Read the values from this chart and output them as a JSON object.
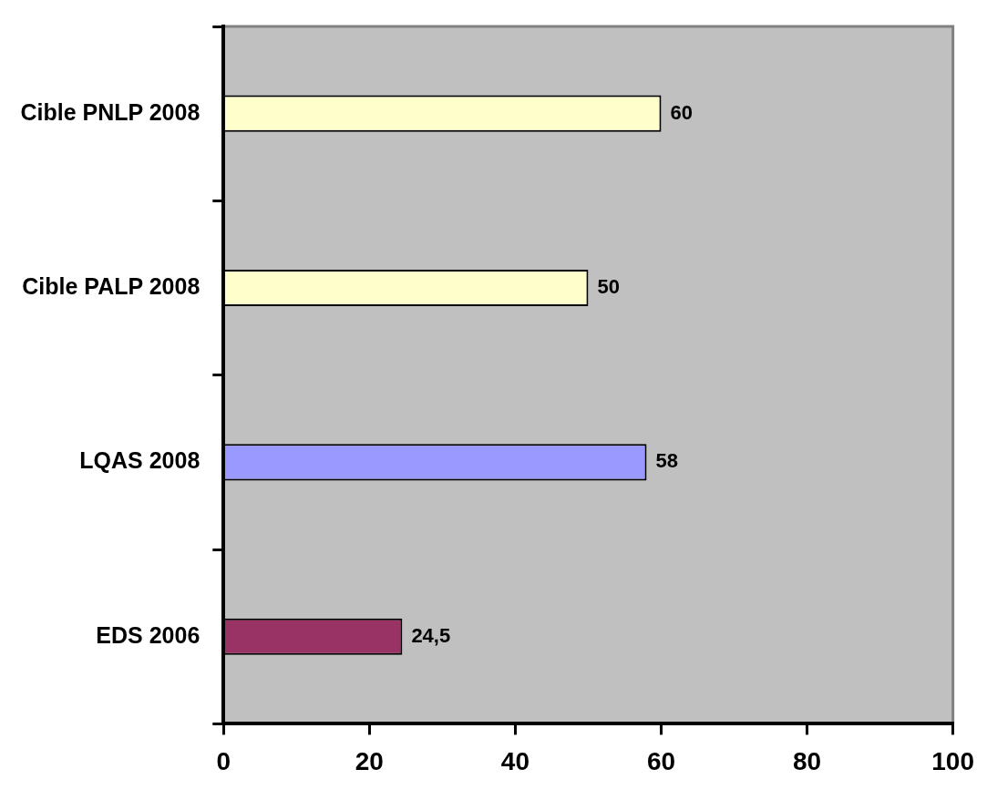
{
  "chart_data": {
    "type": "bar",
    "orientation": "horizontal",
    "categories": [
      "Cible PNLP 2008",
      "Cible PALP 2008",
      "LQAS 2008",
      "EDS 2006"
    ],
    "values": [
      60,
      50,
      58,
      24.5
    ],
    "colors": [
      "#ffffcc",
      "#ffffcc",
      "#9999ff",
      "#993366"
    ],
    "value_labels": [
      "60",
      "50",
      "58",
      "24,5"
    ],
    "xlim": [
      0,
      100
    ],
    "xticks": [
      0,
      20,
      40,
      60,
      80,
      100
    ],
    "grid": false,
    "legend": false
  }
}
